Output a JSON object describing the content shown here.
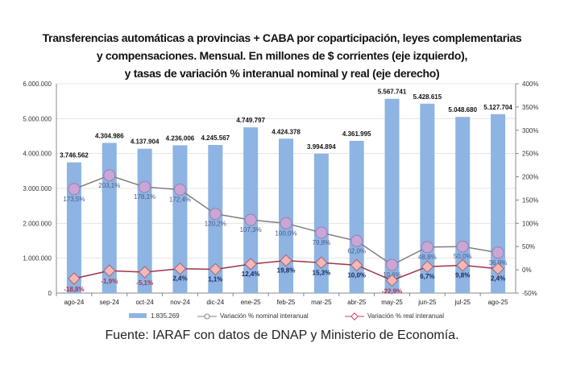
{
  "chart_data": {
    "type": "bar+line",
    "title_lines": [
      "Transferencias  automáticas  a provincias  + CABA por coparticipación,  leyes complementarias",
      "y compensaciones.  Mensual. En millones de $ corrientes (eje izquierdo),",
      "y tasas de variación  % interanual  nominal  y real (eje derecho)"
    ],
    "categories": [
      "ago-24",
      "sep-24",
      "oct-24",
      "nov-24",
      "dic-24",
      "ene-25",
      "feb-25",
      "mar-25",
      "abr-25",
      "may-25",
      "jun-25",
      "jul-25",
      "ago-25"
    ],
    "bars": {
      "name": "1.835.269",
      "values": [
        3746562,
        4304986,
        4137904,
        4236006,
        4245567,
        4749797,
        4424378,
        3994894,
        4361995,
        5567741,
        5428615,
        5048680,
        5127704
      ],
      "labels": [
        "3.746.562",
        "4.304.986",
        "4.137.904",
        "4.236.006",
        "4.245.567",
        "4.749.797",
        "4.424.378",
        "3.994.894",
        "4.361.995",
        "5.567.741",
        "5.428.615",
        "5.048.680",
        "5.127.704"
      ],
      "color": "#8db4e2"
    },
    "series": [
      {
        "name": "Variación % nominal interanual",
        "values": [
          173.5,
          203.1,
          178.1,
          172.4,
          120.2,
          107.3,
          100.0,
          79.8,
          62.0,
          10.6,
          48.8,
          50.0,
          36.9
        ],
        "labels": [
          "173,5%",
          "203,1%",
          "178,1%",
          "172,4%",
          "120,2%",
          "107,3%",
          "100,0%",
          "79,8%",
          "62,0%",
          "10,6%",
          "48,8%",
          "50,0%",
          "36,9%"
        ],
        "color": "#808080",
        "marker_color": "#c9a6d6"
      },
      {
        "name": "Variación % real interanual",
        "values": [
          -18.8,
          -1.9,
          -5.1,
          2.4,
          1.1,
          12.4,
          19.8,
          15.3,
          10.0,
          -22.9,
          6.7,
          9.8,
          2.4
        ],
        "labels": [
          "-18,8%",
          "-1,9%",
          "-5,1%",
          "2,4%",
          "1,1%",
          "12,4%",
          "19,8%",
          "15,3%",
          "10,0%",
          "-22,9%",
          "6,7%",
          "9,8%",
          "2,4%"
        ],
        "color": "#a0344a",
        "marker_color": "#f2b8b8"
      }
    ],
    "left_axis": {
      "range": [
        0,
        6000000
      ],
      "ticks": [
        "0",
        "1.000.000",
        "2.000.000",
        "3.000.000",
        "4.000.000",
        "5.000.000",
        "6.000.000"
      ]
    },
    "right_axis": {
      "range": [
        -50,
        400
      ],
      "ticks": [
        "-50%",
        "0%",
        "50%",
        "100%",
        "150%",
        "200%",
        "250%",
        "300%",
        "350%",
        "400%"
      ]
    },
    "grid": true,
    "legend_placement": "bottom",
    "source": "Fuente: IARAF con datos de DNAP y Ministerio de Economía."
  }
}
